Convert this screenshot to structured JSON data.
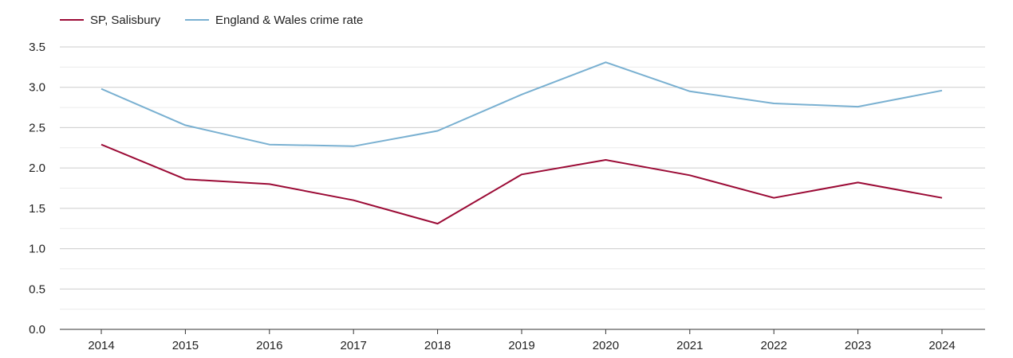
{
  "chart_data": {
    "type": "line",
    "title": "",
    "xlabel": "",
    "ylabel": "",
    "x": [
      "2014",
      "2015",
      "2016",
      "2017",
      "2018",
      "2019",
      "2020",
      "2021",
      "2022",
      "2023",
      "2024"
    ],
    "series": [
      {
        "name": "SP, Salisbury",
        "color": "#9b0a35",
        "values": [
          2.29,
          1.86,
          1.8,
          1.6,
          1.31,
          1.92,
          2.1,
          1.91,
          1.63,
          1.82,
          1.63
        ]
      },
      {
        "name": "England & Wales crime rate",
        "color": "#79b0d1",
        "values": [
          2.98,
          2.53,
          2.29,
          2.27,
          2.46,
          2.91,
          3.31,
          2.95,
          2.8,
          2.76,
          2.96
        ]
      }
    ],
    "ylim": [
      0,
      3.5
    ],
    "yticks": [
      "0.0",
      "0.5",
      "1.0",
      "1.5",
      "2.0",
      "2.5",
      "3.0",
      "3.5"
    ],
    "grid": true,
    "legend_position": "top-left"
  }
}
